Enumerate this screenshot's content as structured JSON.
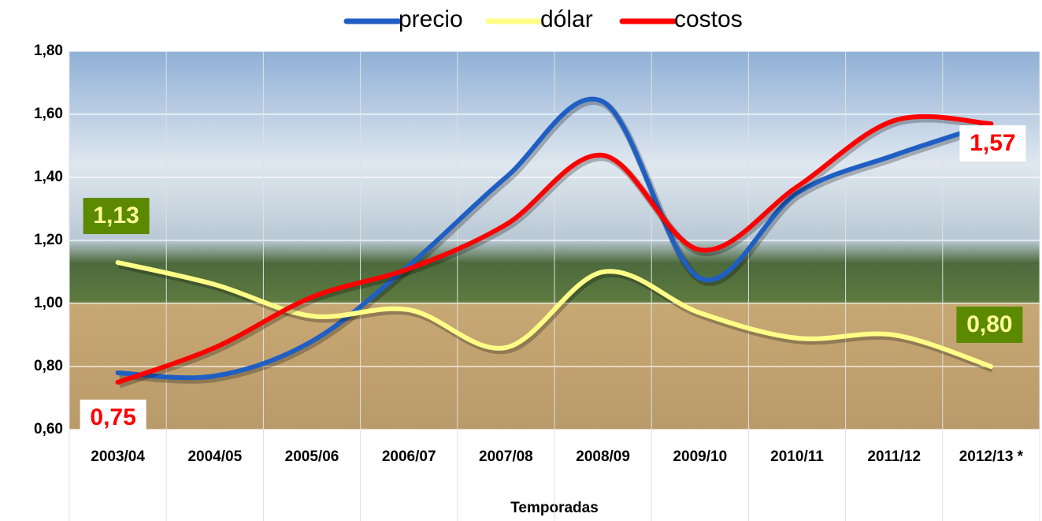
{
  "chart_data": {
    "type": "line",
    "x_label": "Temporadas",
    "categories": [
      "2003/04",
      "2004/05",
      "2005/06",
      "2006/07",
      "2007/08",
      "2008/09",
      "2009/10",
      "2010/11",
      "2011/12",
      "2012/13 *"
    ],
    "series": [
      {
        "name": "precio",
        "color": "#1f5fc4",
        "values": [
          0.78,
          0.77,
          0.88,
          1.12,
          1.4,
          1.64,
          1.08,
          1.35,
          1.47,
          1.57
        ]
      },
      {
        "name": "dólar",
        "color": "#ffff88",
        "values": [
          1.13,
          1.06,
          0.96,
          0.98,
          0.86,
          1.1,
          0.97,
          0.89,
          0.9,
          0.8
        ],
        "value_labels": [
          "1,13",
          null,
          null,
          null,
          null,
          null,
          null,
          null,
          null,
          "0,80"
        ]
      },
      {
        "name": "costos",
        "color": "#ff0000",
        "values": [
          0.75,
          0.86,
          1.02,
          1.11,
          1.25,
          1.47,
          1.17,
          1.37,
          1.58,
          1.57
        ],
        "value_labels": [
          "0,75",
          null,
          null,
          null,
          null,
          null,
          null,
          null,
          null,
          "1,57"
        ]
      }
    ],
    "ylim": [
      0.6,
      1.8
    ],
    "yticks": [
      {
        "value": 0.6,
        "label": "0,60"
      },
      {
        "value": 0.8,
        "label": "0,80"
      },
      {
        "value": 1.0,
        "label": "1,00"
      },
      {
        "value": 1.2,
        "label": "1,20"
      },
      {
        "value": 1.4,
        "label": "1,40"
      },
      {
        "value": 1.6,
        "label": "1,60"
      },
      {
        "value": 1.8,
        "label": "1,80"
      }
    ],
    "grid": true,
    "legend": "top"
  }
}
